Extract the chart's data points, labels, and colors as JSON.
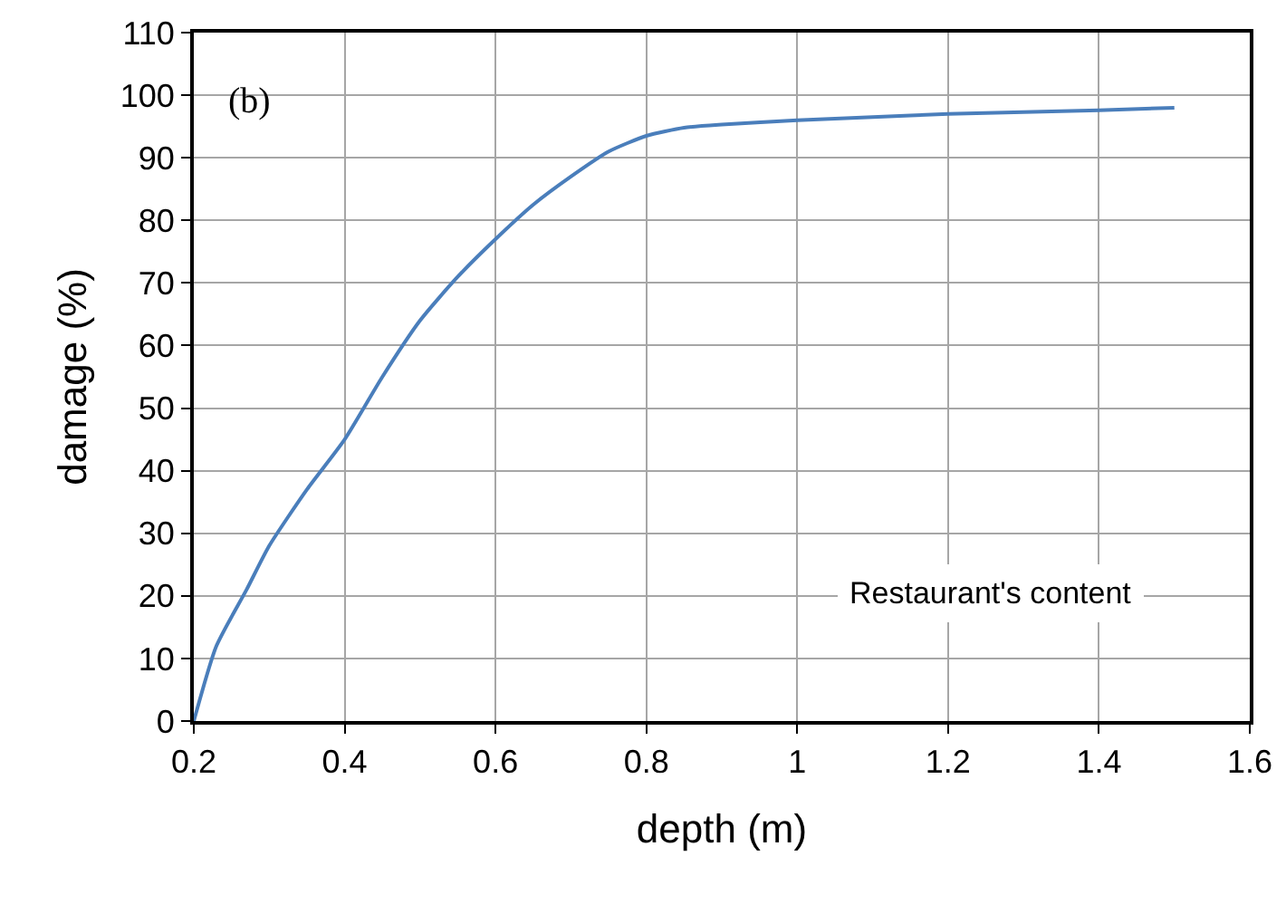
{
  "chart_data": {
    "type": "line",
    "xlabel": "depth (m)",
    "ylabel": "damage (%)",
    "annotations": [
      "(b)",
      "Restaurant's content"
    ],
    "x": [
      0.2,
      0.23,
      0.27,
      0.3,
      0.35,
      0.4,
      0.45,
      0.5,
      0.55,
      0.6,
      0.65,
      0.7,
      0.75,
      0.8,
      0.85,
      0.9,
      1.0,
      1.1,
      1.2,
      1.3,
      1.4,
      1.5
    ],
    "series": [
      {
        "color": "#4a7ebb",
        "values": [
          0,
          12,
          21,
          28,
          37,
          45,
          55,
          64,
          71,
          77,
          82.5,
          87,
          91,
          93.5,
          94.8,
          95.3,
          96,
          96.5,
          97,
          97.3,
          97.6,
          98
        ]
      }
    ],
    "xlim": [
      0.2,
      1.6
    ],
    "xticks": [
      0.2,
      0.4,
      0.6,
      0.8,
      1,
      1.2,
      1.4,
      1.6
    ],
    "ylim": [
      0,
      110
    ],
    "yticks": [
      0,
      10,
      20,
      30,
      40,
      50,
      60,
      70,
      80,
      90,
      100,
      110
    ],
    "grid": true,
    "marker": "none",
    "line_style": "solid"
  }
}
